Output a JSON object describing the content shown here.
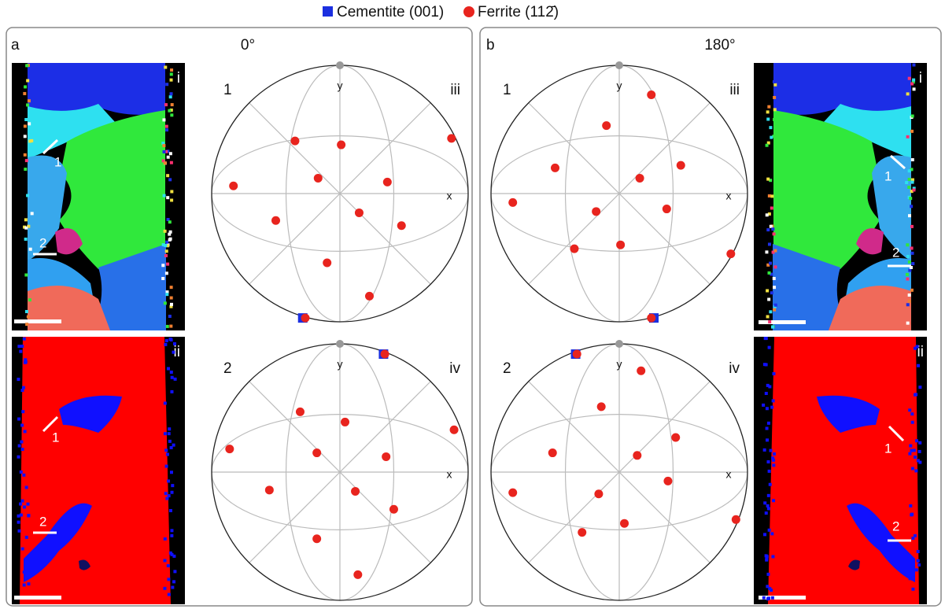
{
  "legend": {
    "items": [
      {
        "label": "Cementite (001)",
        "color": "#1b2fe0",
        "marker": "square"
      },
      {
        "label": "Ferrite (112̄)",
        "color": "#e8241e",
        "marker": "circle"
      }
    ]
  },
  "panels": [
    {
      "letter": "a",
      "angle": "0°",
      "maps": [
        {
          "label": "i",
          "markers": [
            "1",
            "2"
          ]
        },
        {
          "label": "ii",
          "markers": [
            "1",
            "2"
          ]
        }
      ],
      "pole_figures": [
        {
          "number": "1",
          "label": "iii",
          "x_axis": "x",
          "y_axis": "y",
          "ferrite": [
            {
              "x": -0.35,
              "y": 0.41
            },
            {
              "x": 0.01,
              "y": 0.38
            },
            {
              "x": 0.87,
              "y": 0.43
            },
            {
              "x": -0.83,
              "y": 0.06
            },
            {
              "x": -0.17,
              "y": 0.12
            },
            {
              "x": 0.37,
              "y": 0.09
            },
            {
              "x": -0.5,
              "y": -0.21
            },
            {
              "x": 0.15,
              "y": -0.15
            },
            {
              "x": 0.48,
              "y": -0.25
            },
            {
              "x": -0.1,
              "y": -0.54
            },
            {
              "x": 0.23,
              "y": -0.8
            },
            {
              "x": -0.27,
              "y": -0.97
            }
          ],
          "cementite": [
            {
              "x": -0.29,
              "y": -0.97
            }
          ]
        },
        {
          "number": "2",
          "label": "iv",
          "x_axis": "x",
          "y_axis": "y",
          "ferrite": [
            {
              "x": -0.31,
              "y": 0.47
            },
            {
              "x": 0.04,
              "y": 0.39
            },
            {
              "x": 0.89,
              "y": 0.33
            },
            {
              "x": -0.86,
              "y": 0.18
            },
            {
              "x": -0.18,
              "y": 0.15
            },
            {
              "x": 0.36,
              "y": 0.12
            },
            {
              "x": -0.55,
              "y": -0.14
            },
            {
              "x": 0.12,
              "y": -0.15
            },
            {
              "x": 0.42,
              "y": -0.29
            },
            {
              "x": -0.18,
              "y": -0.52
            },
            {
              "x": 0.14,
              "y": -0.8
            },
            {
              "x": 0.35,
              "y": 0.92
            }
          ],
          "cementite": [
            {
              "x": 0.34,
              "y": 0.92
            }
          ]
        }
      ]
    },
    {
      "letter": "b",
      "angle": "180°",
      "maps": [
        {
          "label": "i",
          "markers": [
            "1",
            "2"
          ]
        },
        {
          "label": "ii",
          "markers": [
            "1",
            "2"
          ]
        }
      ],
      "pole_figures": [
        {
          "number": "1",
          "label": "iii",
          "x_axis": "x",
          "y_axis": "y",
          "ferrite": [
            {
              "x": 0.25,
              "y": 0.77
            },
            {
              "x": -0.1,
              "y": 0.53
            },
            {
              "x": -0.5,
              "y": 0.2
            },
            {
              "x": 0.48,
              "y": 0.22
            },
            {
              "x": 0.16,
              "y": 0.12
            },
            {
              "x": -0.83,
              "y": -0.07
            },
            {
              "x": -0.18,
              "y": -0.14
            },
            {
              "x": 0.37,
              "y": -0.12
            },
            {
              "x": -0.35,
              "y": -0.43
            },
            {
              "x": 0.01,
              "y": -0.4
            },
            {
              "x": 0.87,
              "y": -0.47
            },
            {
              "x": 0.25,
              "y": -0.97
            }
          ],
          "cementite": [
            {
              "x": 0.27,
              "y": -0.97
            }
          ]
        },
        {
          "number": "2",
          "label": "iv",
          "x_axis": "x",
          "y_axis": "y",
          "ferrite": [
            {
              "x": 0.17,
              "y": 0.79
            },
            {
              "x": -0.14,
              "y": 0.51
            },
            {
              "x": 0.44,
              "y": 0.27
            },
            {
              "x": -0.52,
              "y": 0.15
            },
            {
              "x": 0.14,
              "y": 0.13
            },
            {
              "x": -0.83,
              "y": -0.16
            },
            {
              "x": 0.38,
              "y": -0.07
            },
            {
              "x": -0.16,
              "y": -0.17
            },
            {
              "x": -0.29,
              "y": -0.47
            },
            {
              "x": 0.04,
              "y": -0.4
            },
            {
              "x": 0.91,
              "y": -0.37
            },
            {
              "x": -0.33,
              "y": 0.92
            }
          ],
          "cementite": [
            {
              "x": -0.34,
              "y": 0.92
            }
          ]
        }
      ]
    }
  ]
}
